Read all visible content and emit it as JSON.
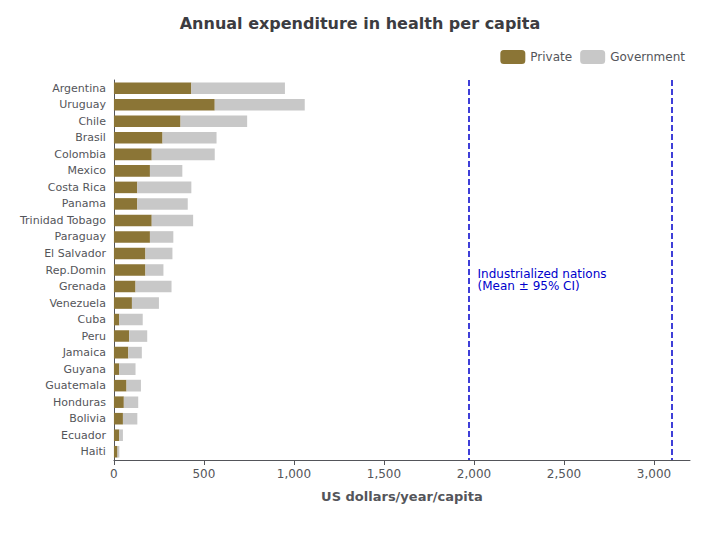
{
  "chart_data": {
    "type": "bar",
    "orientation": "horizontal",
    "stacked": true,
    "title": "Annual expenditure in health per capita",
    "xlabel": "US dollars/year/capita",
    "categories": [
      "Argentina",
      "Uruguay",
      "Chile",
      "Brasil",
      "Colombia",
      "Mexico",
      "Costa Rica",
      "Panama",
      "Trinidad Tobago",
      "Paraguay",
      "El Salvador",
      "Rep.Domin",
      "Grenada",
      "Venezuela",
      "Cuba",
      "Peru",
      "Jamaica",
      "Guyana",
      "Guatemala",
      "Honduras",
      "Bolivia",
      "Ecuador",
      "Haiti"
    ],
    "series": [
      {
        "name": "Private",
        "color": "#8B7536",
        "values": [
          430,
          560,
          370,
          270,
          210,
          200,
          130,
          130,
          210,
          200,
          175,
          175,
          120,
          100,
          30,
          85,
          80,
          30,
          70,
          55,
          50,
          30,
          20
        ]
      },
      {
        "name": "Government",
        "color": "#C8C8C8",
        "values": [
          520,
          500,
          370,
          300,
          350,
          180,
          300,
          280,
          230,
          130,
          150,
          100,
          200,
          150,
          130,
          100,
          75,
          90,
          80,
          80,
          80,
          20,
          10
        ]
      }
    ],
    "xlim": [
      0,
      3200
    ],
    "xticks": [
      0,
      500,
      1000,
      1500,
      2000,
      2500,
      3000
    ],
    "grid": false,
    "legend": "upper right",
    "vlines": {
      "values": [
        1970,
        3100
      ],
      "color": "#0000CC",
      "line_style": "dashed"
    },
    "annotation": {
      "text": "Industrialized nations\n(Mean ± 95% CI)",
      "x": 2020,
      "color": "#0000CC"
    }
  }
}
